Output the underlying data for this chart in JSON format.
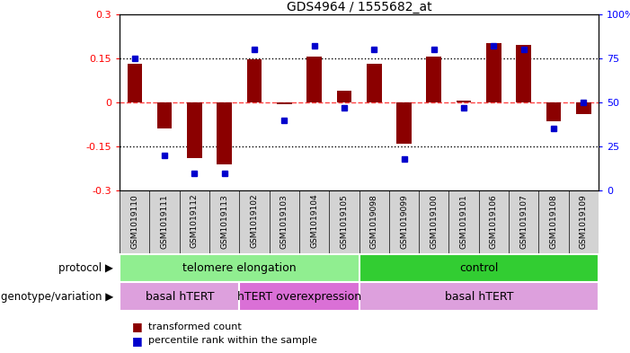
{
  "title": "GDS4964 / 1555682_at",
  "samples": [
    "GSM1019110",
    "GSM1019111",
    "GSM1019112",
    "GSM1019113",
    "GSM1019102",
    "GSM1019103",
    "GSM1019104",
    "GSM1019105",
    "GSM1019098",
    "GSM1019099",
    "GSM1019100",
    "GSM1019101",
    "GSM1019106",
    "GSM1019107",
    "GSM1019108",
    "GSM1019109"
  ],
  "transformed_counts": [
    0.13,
    -0.09,
    -0.19,
    -0.21,
    0.145,
    -0.005,
    0.155,
    0.04,
    0.13,
    -0.14,
    0.155,
    0.005,
    0.2,
    0.195,
    -0.065,
    -0.04
  ],
  "percentile_ranks": [
    75,
    20,
    10,
    10,
    80,
    40,
    82,
    47,
    80,
    18,
    80,
    47,
    82,
    80,
    35,
    50
  ],
  "ylim_left": [
    -0.3,
    0.3
  ],
  "ylim_right": [
    0,
    100
  ],
  "yticks_left": [
    -0.3,
    -0.15,
    0,
    0.15,
    0.3
  ],
  "yticks_right": [
    0,
    25,
    50,
    75,
    100
  ],
  "bar_color": "#8B0000",
  "dot_color": "#0000CD",
  "hline_color": "#FF4444",
  "dotline_color": "black",
  "protocol_groups": [
    {
      "label": "telomere elongation",
      "start": 0,
      "end": 7,
      "color": "#90EE90"
    },
    {
      "label": "control",
      "start": 8,
      "end": 15,
      "color": "#32CD32"
    }
  ],
  "genotype_groups": [
    {
      "label": "basal hTERT",
      "start": 0,
      "end": 3,
      "color": "#DDA0DD"
    },
    {
      "label": "hTERT overexpression",
      "start": 4,
      "end": 7,
      "color": "#DA70D6"
    },
    {
      "label": "basal hTERT",
      "start": 8,
      "end": 15,
      "color": "#DDA0DD"
    }
  ],
  "legend_items": [
    {
      "label": "transformed count",
      "color": "#8B0000"
    },
    {
      "label": "percentile rank within the sample",
      "color": "#0000CD"
    }
  ],
  "protocol_label": "protocol",
  "genotype_label": "genotype/variation",
  "bg_color": "#FFFFFF",
  "cell_bg": "#D3D3D3"
}
